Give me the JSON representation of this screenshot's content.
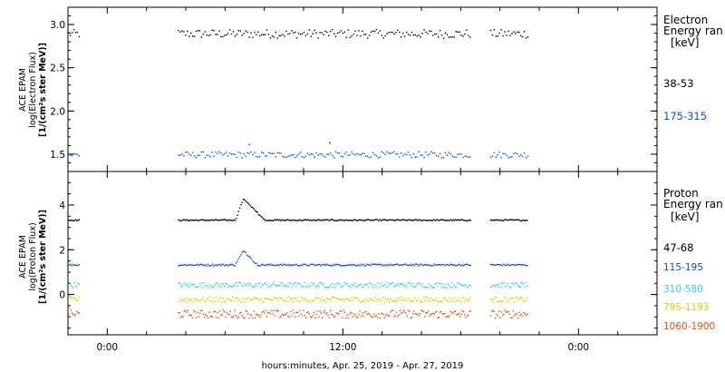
{
  "x_axis": {
    "label": "hours:minutes, Apr. 25, 2019 - Apr. 27, 2019",
    "ticks": [
      {
        "t": 0,
        "label": "0:00"
      },
      {
        "t": 12,
        "label": "12:00"
      },
      {
        "t": 24,
        "label": "0:00"
      }
    ],
    "range_hours": [
      -2.0,
      28.0
    ],
    "minor_tick_every_hours": 2
  },
  "chart_data": [
    {
      "type": "scatter",
      "ylabel": [
        "ACE EPAM",
        "log(Electron Flux)",
        "[1/(cm²s ster MeV)]"
      ],
      "ylim": [
        1.3,
        3.2
      ],
      "yticks": [
        1.5,
        2.0,
        2.5,
        3.0
      ],
      "yticklabels": [
        "1.5",
        "2.0",
        "2.5",
        "3.0"
      ],
      "legend": {
        "title": [
          "Electron",
          "Energy ran",
          "[keV]"
        ],
        "placement": "right"
      },
      "series": [
        {
          "name": "38-53",
          "color": "#000000",
          "level": 2.9,
          "spread": 0.05
        },
        {
          "name": "175-315",
          "color": "#0b4fd4",
          "level": 1.5,
          "spread": 0.035,
          "events": [
            {
              "t": 7.2,
              "y": 1.62
            },
            {
              "t": 11.3,
              "y": 1.64
            }
          ]
        }
      ]
    },
    {
      "type": "scatter",
      "ylabel": [
        "ACE EPAM",
        "log(Proton Flux)",
        "[1/(cm²s ster MeV)]"
      ],
      "ylim": [
        -1.8,
        5.5
      ],
      "yticks": [
        0,
        2,
        4
      ],
      "yticklabels": [
        "0",
        "2",
        "4"
      ],
      "legend": {
        "title": [
          "Proton",
          "Energy ran",
          "[keV]"
        ],
        "placement": "right"
      },
      "series": [
        {
          "name": "47-68",
          "color": "#000000",
          "level": 3.35,
          "spread": 0.03,
          "spike": {
            "t_start": 6.5,
            "t_peak": 6.9,
            "t_end": 8.0,
            "peak": 4.3
          }
        },
        {
          "name": "115-195",
          "color": "#0b4fd4",
          "level": 1.35,
          "spread": 0.04,
          "spike": {
            "t_start": 6.5,
            "t_peak": 6.9,
            "t_end": 7.6,
            "peak": 2.0
          }
        },
        {
          "name": "310-580",
          "color": "#2fd0d8",
          "level": 0.45,
          "spread": 0.12
        },
        {
          "name": "795-1193",
          "color": "#c8d800",
          "level": -0.2,
          "spread": 0.12
        },
        {
          "name": "1060-1900",
          "color": "#e0501a",
          "level": -0.85,
          "spread": 0.18
        }
      ]
    }
  ],
  "data_segments_hours": [
    [
      -2.0,
      -1.4
    ],
    [
      3.6,
      18.5
    ],
    [
      19.5,
      21.4
    ]
  ]
}
